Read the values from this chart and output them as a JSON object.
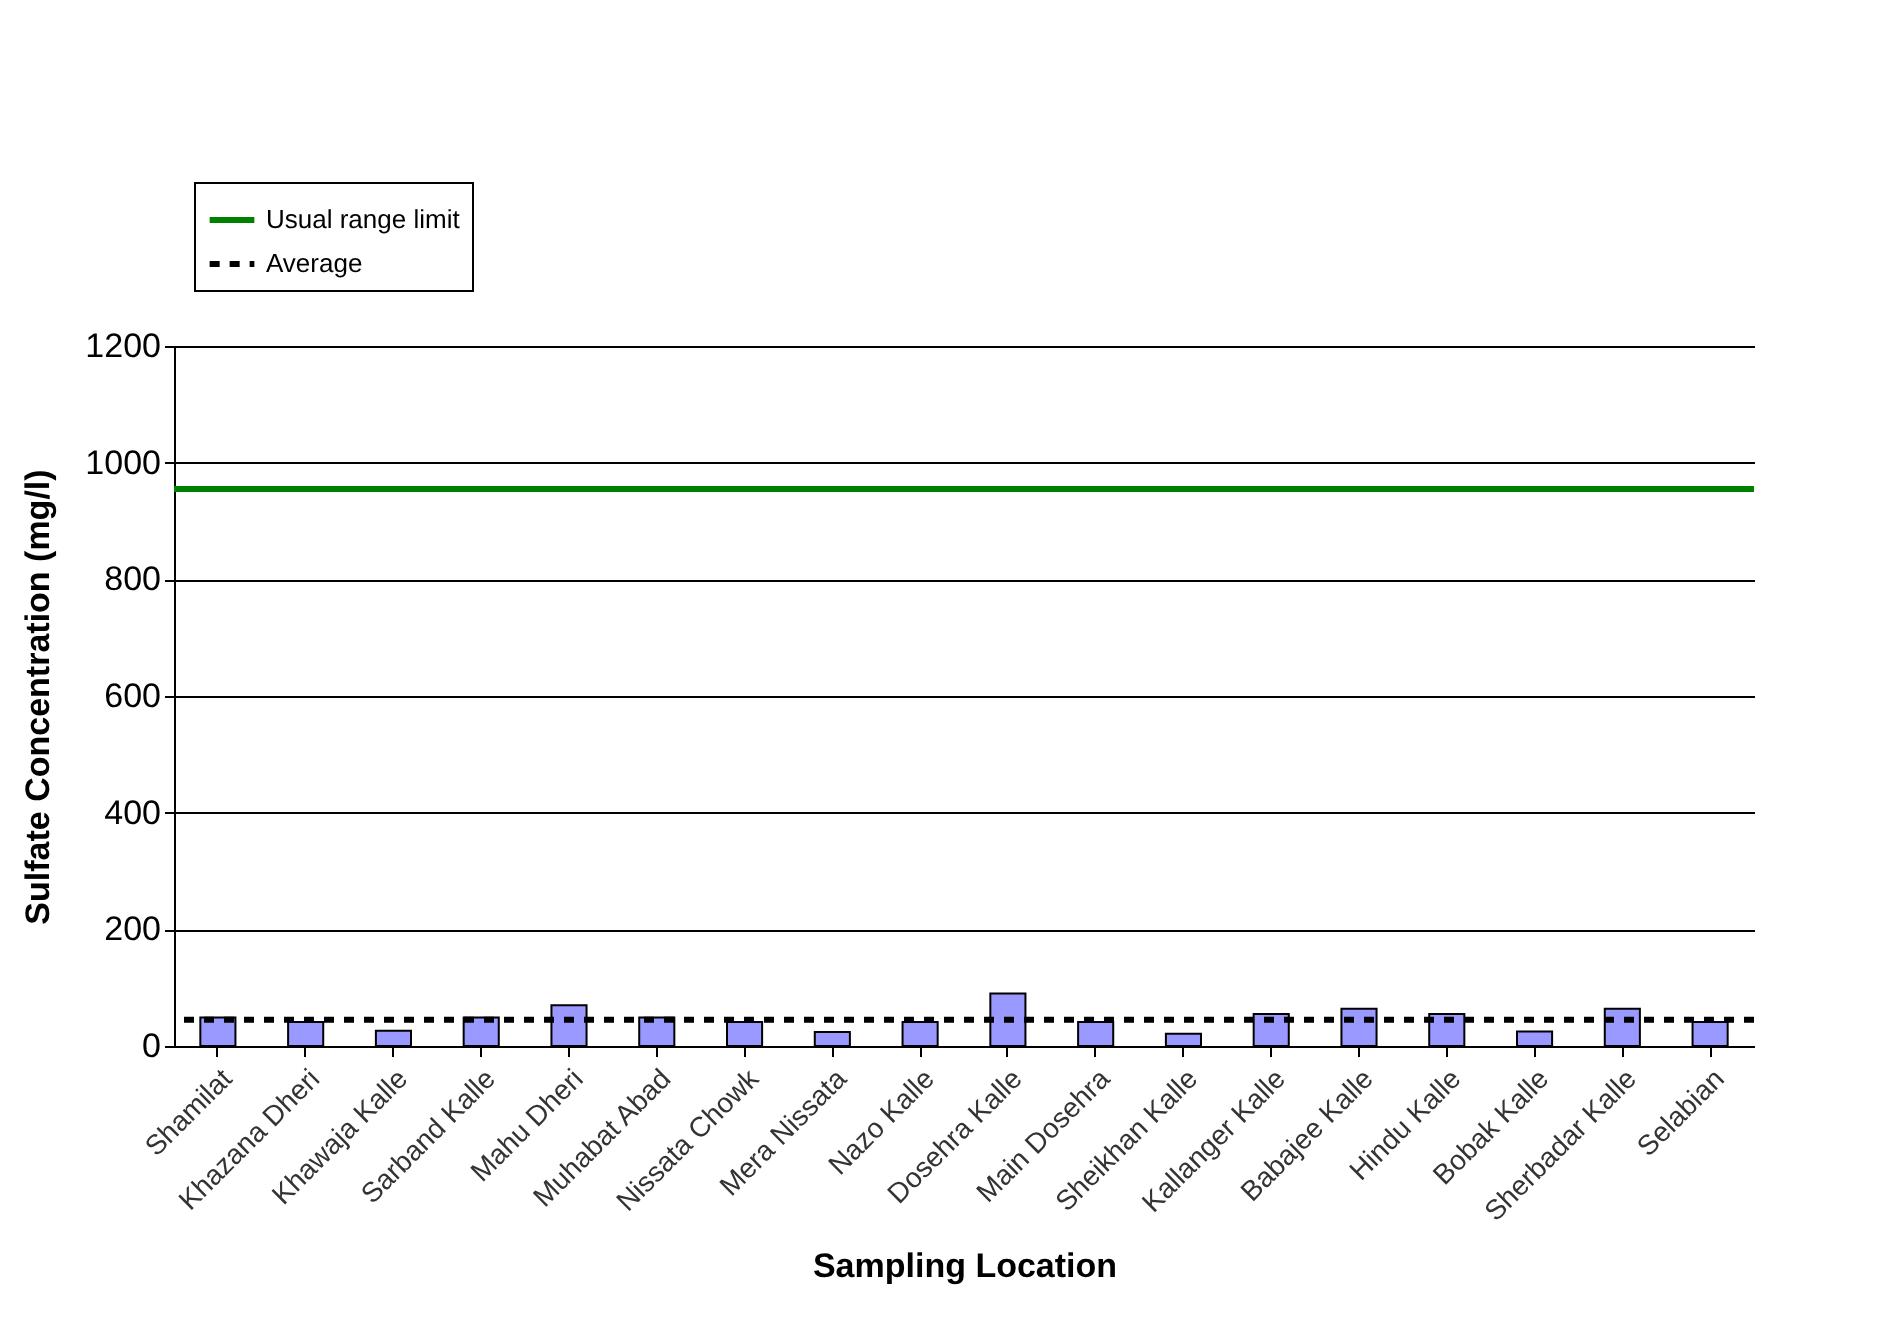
{
  "chart_data": {
    "type": "bar",
    "xlabel": "Sampling Location",
    "ylabel": "Sulfate Concentration (mg/l)",
    "categories": [
      "Shamilat",
      "Khazana Dheri",
      "Khawaja Kalle",
      "Sarband Kalle",
      "Mahu Dheri",
      "Muhabat Abad",
      "Nissata Chowk",
      "Mera Nissata",
      "Nazo Kalle",
      "Dosehra Kalle",
      "Main Dosehra",
      "Sheikhan Kalle",
      "Kallanger Kalle",
      "Babajee Kalle",
      "Hindu Kalle",
      "Bobak Kalle",
      "Sherbadar Kalle",
      "Selabian"
    ],
    "values": [
      49,
      41,
      26,
      49,
      70,
      49,
      41,
      24,
      41,
      90,
      41,
      21,
      55,
      64,
      55,
      25,
      64,
      41
    ],
    "color": "#9999ff",
    "ylim": [
      0,
      1200
    ],
    "yticks": [
      0,
      200,
      400,
      600,
      800,
      1000,
      1200
    ],
    "grid": "y",
    "legend": "top left",
    "ref_lines": [
      {
        "axis": "y",
        "value": 955,
        "label": "Usual range limit",
        "color": "#008000",
        "line_style": "solid"
      },
      {
        "axis": "y",
        "value": 45,
        "label": "Average",
        "color": "#000000",
        "line_style": "dashed"
      }
    ]
  }
}
